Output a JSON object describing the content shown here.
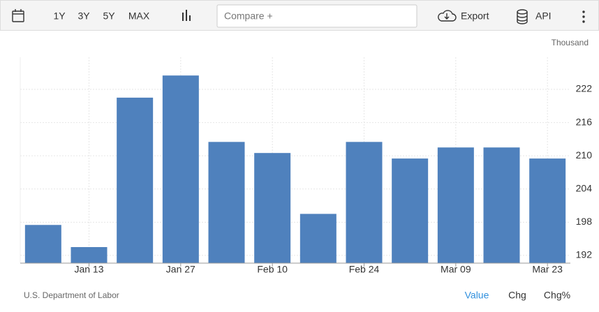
{
  "toolbar": {
    "ranges": [
      "1Y",
      "3Y",
      "5Y",
      "MAX"
    ],
    "compare": "Compare +",
    "export": "Export",
    "api": "API"
  },
  "chart_data": {
    "type": "bar",
    "unit": "Thousand",
    "source": "U.S. Department of Labor",
    "categories": [
      null,
      "Jan 13",
      null,
      "Jan 27",
      null,
      "Feb 10",
      null,
      "Feb 24",
      null,
      "Mar 09",
      null,
      "Mar 23"
    ],
    "values": [
      197.5,
      193.5,
      220.5,
      224.5,
      212.5,
      210.5,
      199.5,
      212.5,
      209.5,
      211.5,
      211.5,
      209.5
    ],
    "color": "#4f81bd",
    "ylim": [
      190.6,
      227.8
    ],
    "yticks": [
      192,
      198,
      204,
      210,
      216,
      222
    ],
    "grid": true
  },
  "footer_tabs": [
    "Value",
    "Chg",
    "Chg%"
  ]
}
